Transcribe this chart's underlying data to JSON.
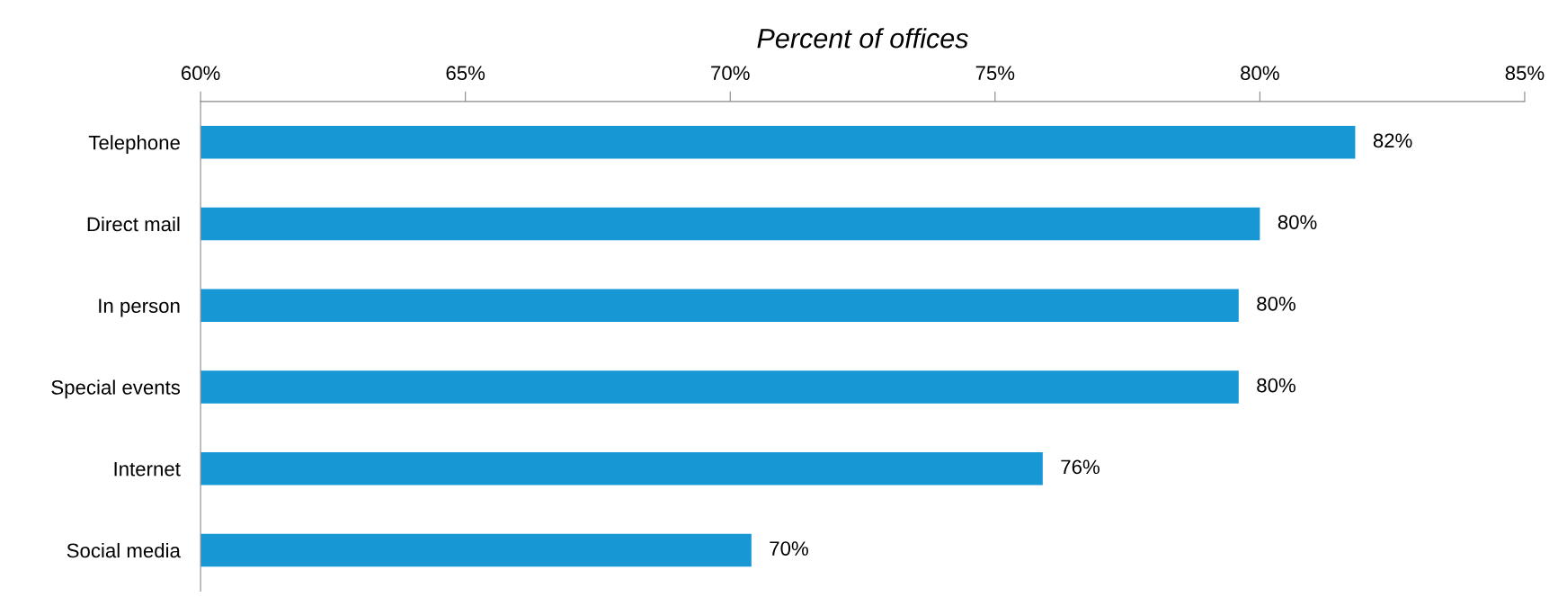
{
  "chart_data": {
    "type": "bar",
    "orientation": "horizontal",
    "xlabel": "Percent of offices",
    "categories": [
      "Telephone",
      "Direct mail",
      "In person",
      "Special events",
      "Internet",
      "Social media"
    ],
    "values": [
      81.8,
      80.0,
      79.6,
      79.6,
      75.9,
      70.4
    ],
    "value_labels": [
      "82%",
      "80%",
      "80%",
      "80%",
      "76%",
      "70%"
    ],
    "color": "#1897d5",
    "xlim": [
      60,
      85
    ],
    "xticks": [
      {
        "value": 60,
        "label": "60%"
      },
      {
        "value": 65,
        "label": "65%"
      },
      {
        "value": 70,
        "label": "70%"
      },
      {
        "value": 75,
        "label": "75%"
      },
      {
        "value": 80,
        "label": "80%"
      },
      {
        "value": 85,
        "label": "85%"
      }
    ],
    "grid": false
  }
}
